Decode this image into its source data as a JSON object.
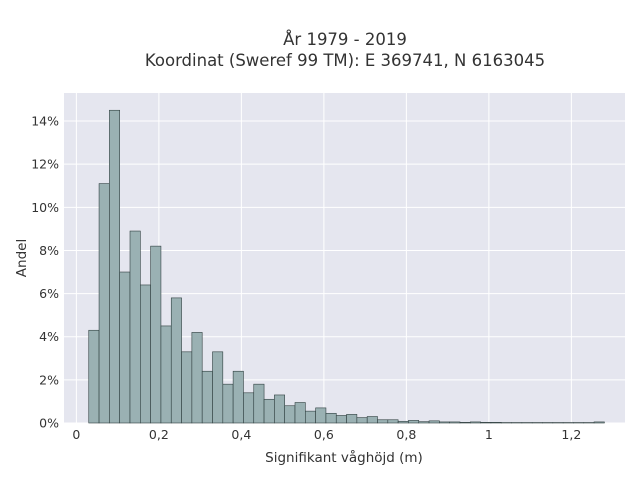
{
  "chart_data": {
    "type": "bar",
    "title": "År 1979 - 2019",
    "subtitle": "Koordinat (Sweref 99 TM): E 369741, N 6163045",
    "xlabel": "Signifikant våghöjd (m)",
    "ylabel": "Andel",
    "xlim": [
      -0.03,
      1.33
    ],
    "ylim": [
      0,
      0.153
    ],
    "x_ticks": [
      0,
      0.2,
      0.4,
      0.6,
      0.8,
      1,
      1.2
    ],
    "x_tick_labels": [
      "0",
      "0,2",
      "0,4",
      "0,6",
      "0,8",
      "1",
      "1,2"
    ],
    "y_ticks": [
      0,
      0.02,
      0.04,
      0.06,
      0.08,
      0.1,
      0.12,
      0.14
    ],
    "y_tick_labels": [
      "0%",
      "2%",
      "4%",
      "6%",
      "8%",
      "10%",
      "12%",
      "14%"
    ],
    "grid": true,
    "bin_width": 0.025,
    "bin_starts": [
      0.03,
      0.055,
      0.08,
      0.105,
      0.13,
      0.155,
      0.18,
      0.205,
      0.23,
      0.255,
      0.28,
      0.305,
      0.33,
      0.355,
      0.38,
      0.405,
      0.43,
      0.455,
      0.48,
      0.505,
      0.53,
      0.555,
      0.58,
      0.605,
      0.63,
      0.655,
      0.68,
      0.705,
      0.73,
      0.755,
      0.78,
      0.805,
      0.83,
      0.855,
      0.88,
      0.905,
      0.93,
      0.955,
      0.98,
      1.005,
      1.03,
      1.055,
      1.08,
      1.105,
      1.13,
      1.155,
      1.18,
      1.205,
      1.23,
      1.255
    ],
    "values": [
      0.043,
      0.111,
      0.145,
      0.07,
      0.089,
      0.064,
      0.082,
      0.045,
      0.058,
      0.033,
      0.042,
      0.024,
      0.033,
      0.018,
      0.024,
      0.014,
      0.018,
      0.011,
      0.013,
      0.008,
      0.0095,
      0.0055,
      0.007,
      0.0045,
      0.0035,
      0.004,
      0.0025,
      0.003,
      0.0015,
      0.0015,
      0.0008,
      0.0012,
      0.0006,
      0.001,
      0.0005,
      0.0005,
      0.0003,
      0.0005,
      0.0003,
      0.0003,
      0.0002,
      0.0002,
      0.0002,
      0.0002,
      0.0002,
      0.0002,
      0.0002,
      0.0002,
      0.0002,
      0.0005
    ],
    "colors": {
      "plot_background": "#e5e6ef",
      "grid": "#ffffff",
      "bar_fill": "#9ab1b3",
      "bar_stroke": "#2f3f3f",
      "text": "#333333"
    }
  }
}
